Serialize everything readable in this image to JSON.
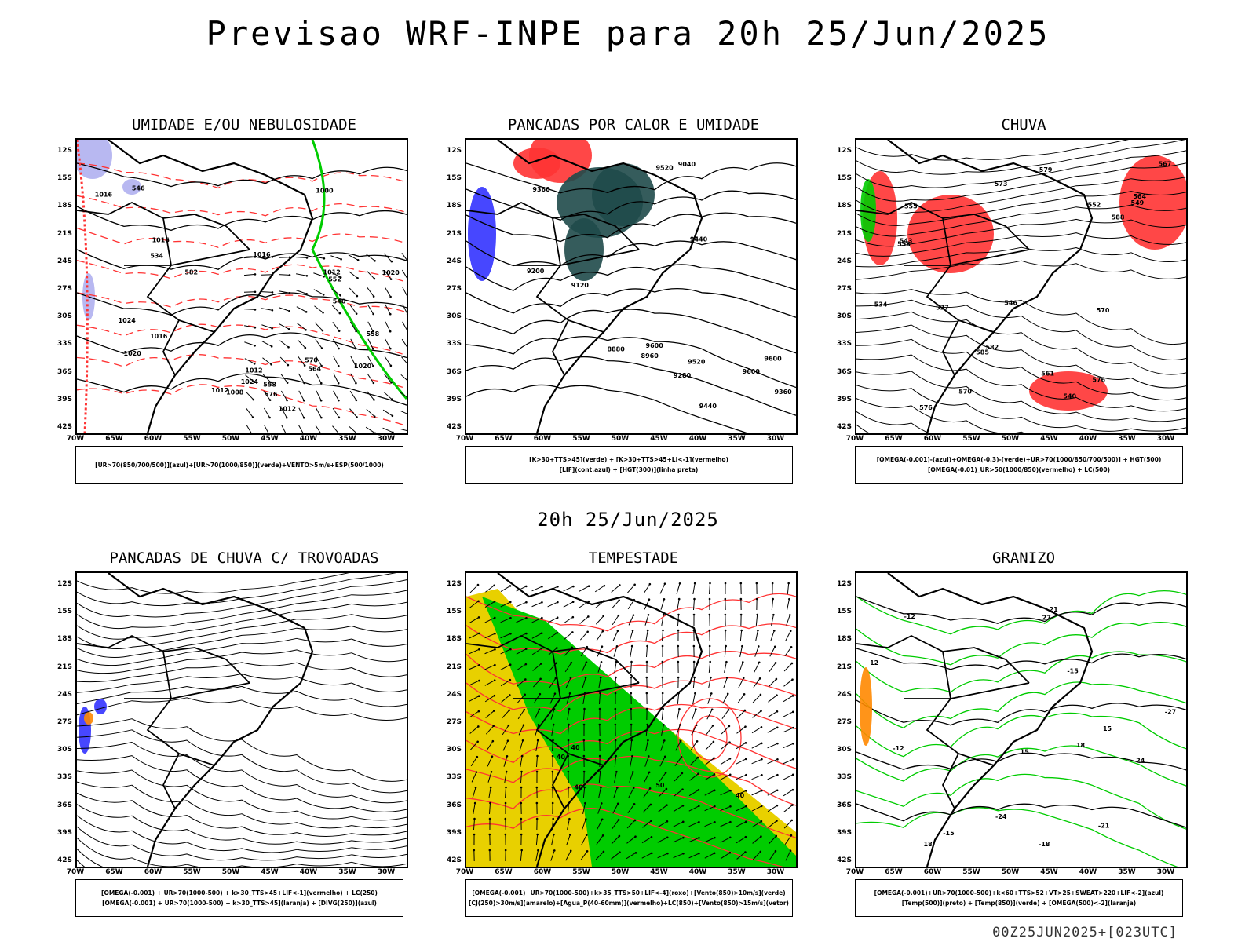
{
  "header": {
    "title": "Previsao WRF-INPE  para 20h 25/Jun/2025"
  },
  "mid_title": "20h 25/Jun/2025",
  "footer": "00Z25JUN2025+[023UTC]",
  "axes": {
    "lat_ticks": [
      "12S",
      "15S",
      "18S",
      "21S",
      "24S",
      "27S",
      "30S",
      "33S",
      "36S",
      "39S",
      "42S"
    ],
    "lon_ticks": [
      "70W",
      "65W",
      "60W",
      "55W",
      "50W",
      "45W",
      "40W",
      "35W",
      "30W"
    ]
  },
  "colors": {
    "blue": "#3333ff",
    "green": "#00cc00",
    "red": "#ff3333",
    "yellow": "#e8d000",
    "orange": "#ff8800",
    "lavender": "#b0b0f0",
    "dark_teal": "#1f4a4a",
    "purple": "#9933cc"
  },
  "panels": [
    {
      "id": "umidade",
      "title": "UMIDADE E/OU NEBULOSIDADE",
      "legend": [
        "[UR>70(850/700/500)](azul)+[UR>70(1000/850)](verde)+VENTO>5m/s+ESP(500/1000)"
      ],
      "labels": [
        "1012",
        "1012",
        "1016",
        "1016",
        "1020",
        "1020",
        "1024",
        "1024",
        "1012",
        "1016",
        "1016",
        "1020",
        "1008",
        "1012",
        "1000",
        "576",
        "570",
        "564",
        "558",
        "552",
        "546",
        "540",
        "534",
        "582",
        "558"
      ]
    },
    {
      "id": "pancadas_calor",
      "title": "PANCADAS POR CALOR E UMIDADE",
      "legend": [
        "[K>30+TTS>45](verde) + [K>30+TTS>45+LI<-1](vermelho)",
        "[LIF](cont.azul) + [HGT(300)](linha preta)"
      ],
      "labels": [
        "9600",
        "9600",
        "9600",
        "9520",
        "9520",
        "9440",
        "9440",
        "9360",
        "9360",
        "9280",
        "9200",
        "9120",
        "9040",
        "8960",
        "8880"
      ]
    },
    {
      "id": "chuva",
      "title": "CHUVA",
      "legend": [
        "[OMEGA(-0.001)-(azul)+OMEGA(-0.3)-(verde)+UR>70(1000/850/700/500)] + HGT(500)",
        "[OMEGA(-0.01)_UR>50(1000/850)(vermelho) + LC(500)"
      ],
      "labels": [
        "585",
        "582",
        "579",
        "576",
        "573",
        "570",
        "567",
        "564",
        "561",
        "558",
        "555",
        "552",
        "549",
        "546",
        "543",
        "540",
        "537",
        "534",
        "576",
        "570",
        "588"
      ]
    },
    {
      "id": "pancadas_trovoadas",
      "title": "PANCADAS DE CHUVA C/ TROVOADAS",
      "legend": [
        "[OMEGA(-0.001) + UR>70(1000-500) + k>30_TTS>45+LIF<-1](vermelho) + LC(250)",
        "[OMEGA(-0.001) + UR>70(1000-500) + k>30_TTS>45](laranja) + [DIVG(250)](azul)"
      ],
      "labels": []
    },
    {
      "id": "tempestade",
      "title": "TEMPESTADE",
      "legend": [
        "[OMEGA(-0.001)+UR>70(1000-500)+k>35_TTS>50+LIF<-4](roxo)+[Vento(850)>10m/s](verde)",
        "[CJ(250)>30m/s](amarelo)+[Agua_P(40-60mm)](vermelho)+LC(850)+[Vento(850)>15m/s](vetor)"
      ],
      "labels": [
        "40",
        "40",
        "50",
        "40",
        "40"
      ]
    },
    {
      "id": "granizo",
      "title": "GRANIZO",
      "legend": [
        "[OMEGA(-0.001)+UR>70(1000-500)+k<60+TTS>52+VT>25+SWEAT>220+LIF<-2](azul)",
        "[Temp(500)](preto) + [Temp(850)](verde) + [OMEGA(500)<-2](laranja)"
      ],
      "labels": [
        "15",
        "18",
        "21",
        "24",
        "27",
        "-12",
        "-15",
        "-18",
        "-21",
        "-24",
        "-27",
        "12",
        "15",
        "18",
        "-12",
        "-15"
      ]
    }
  ]
}
